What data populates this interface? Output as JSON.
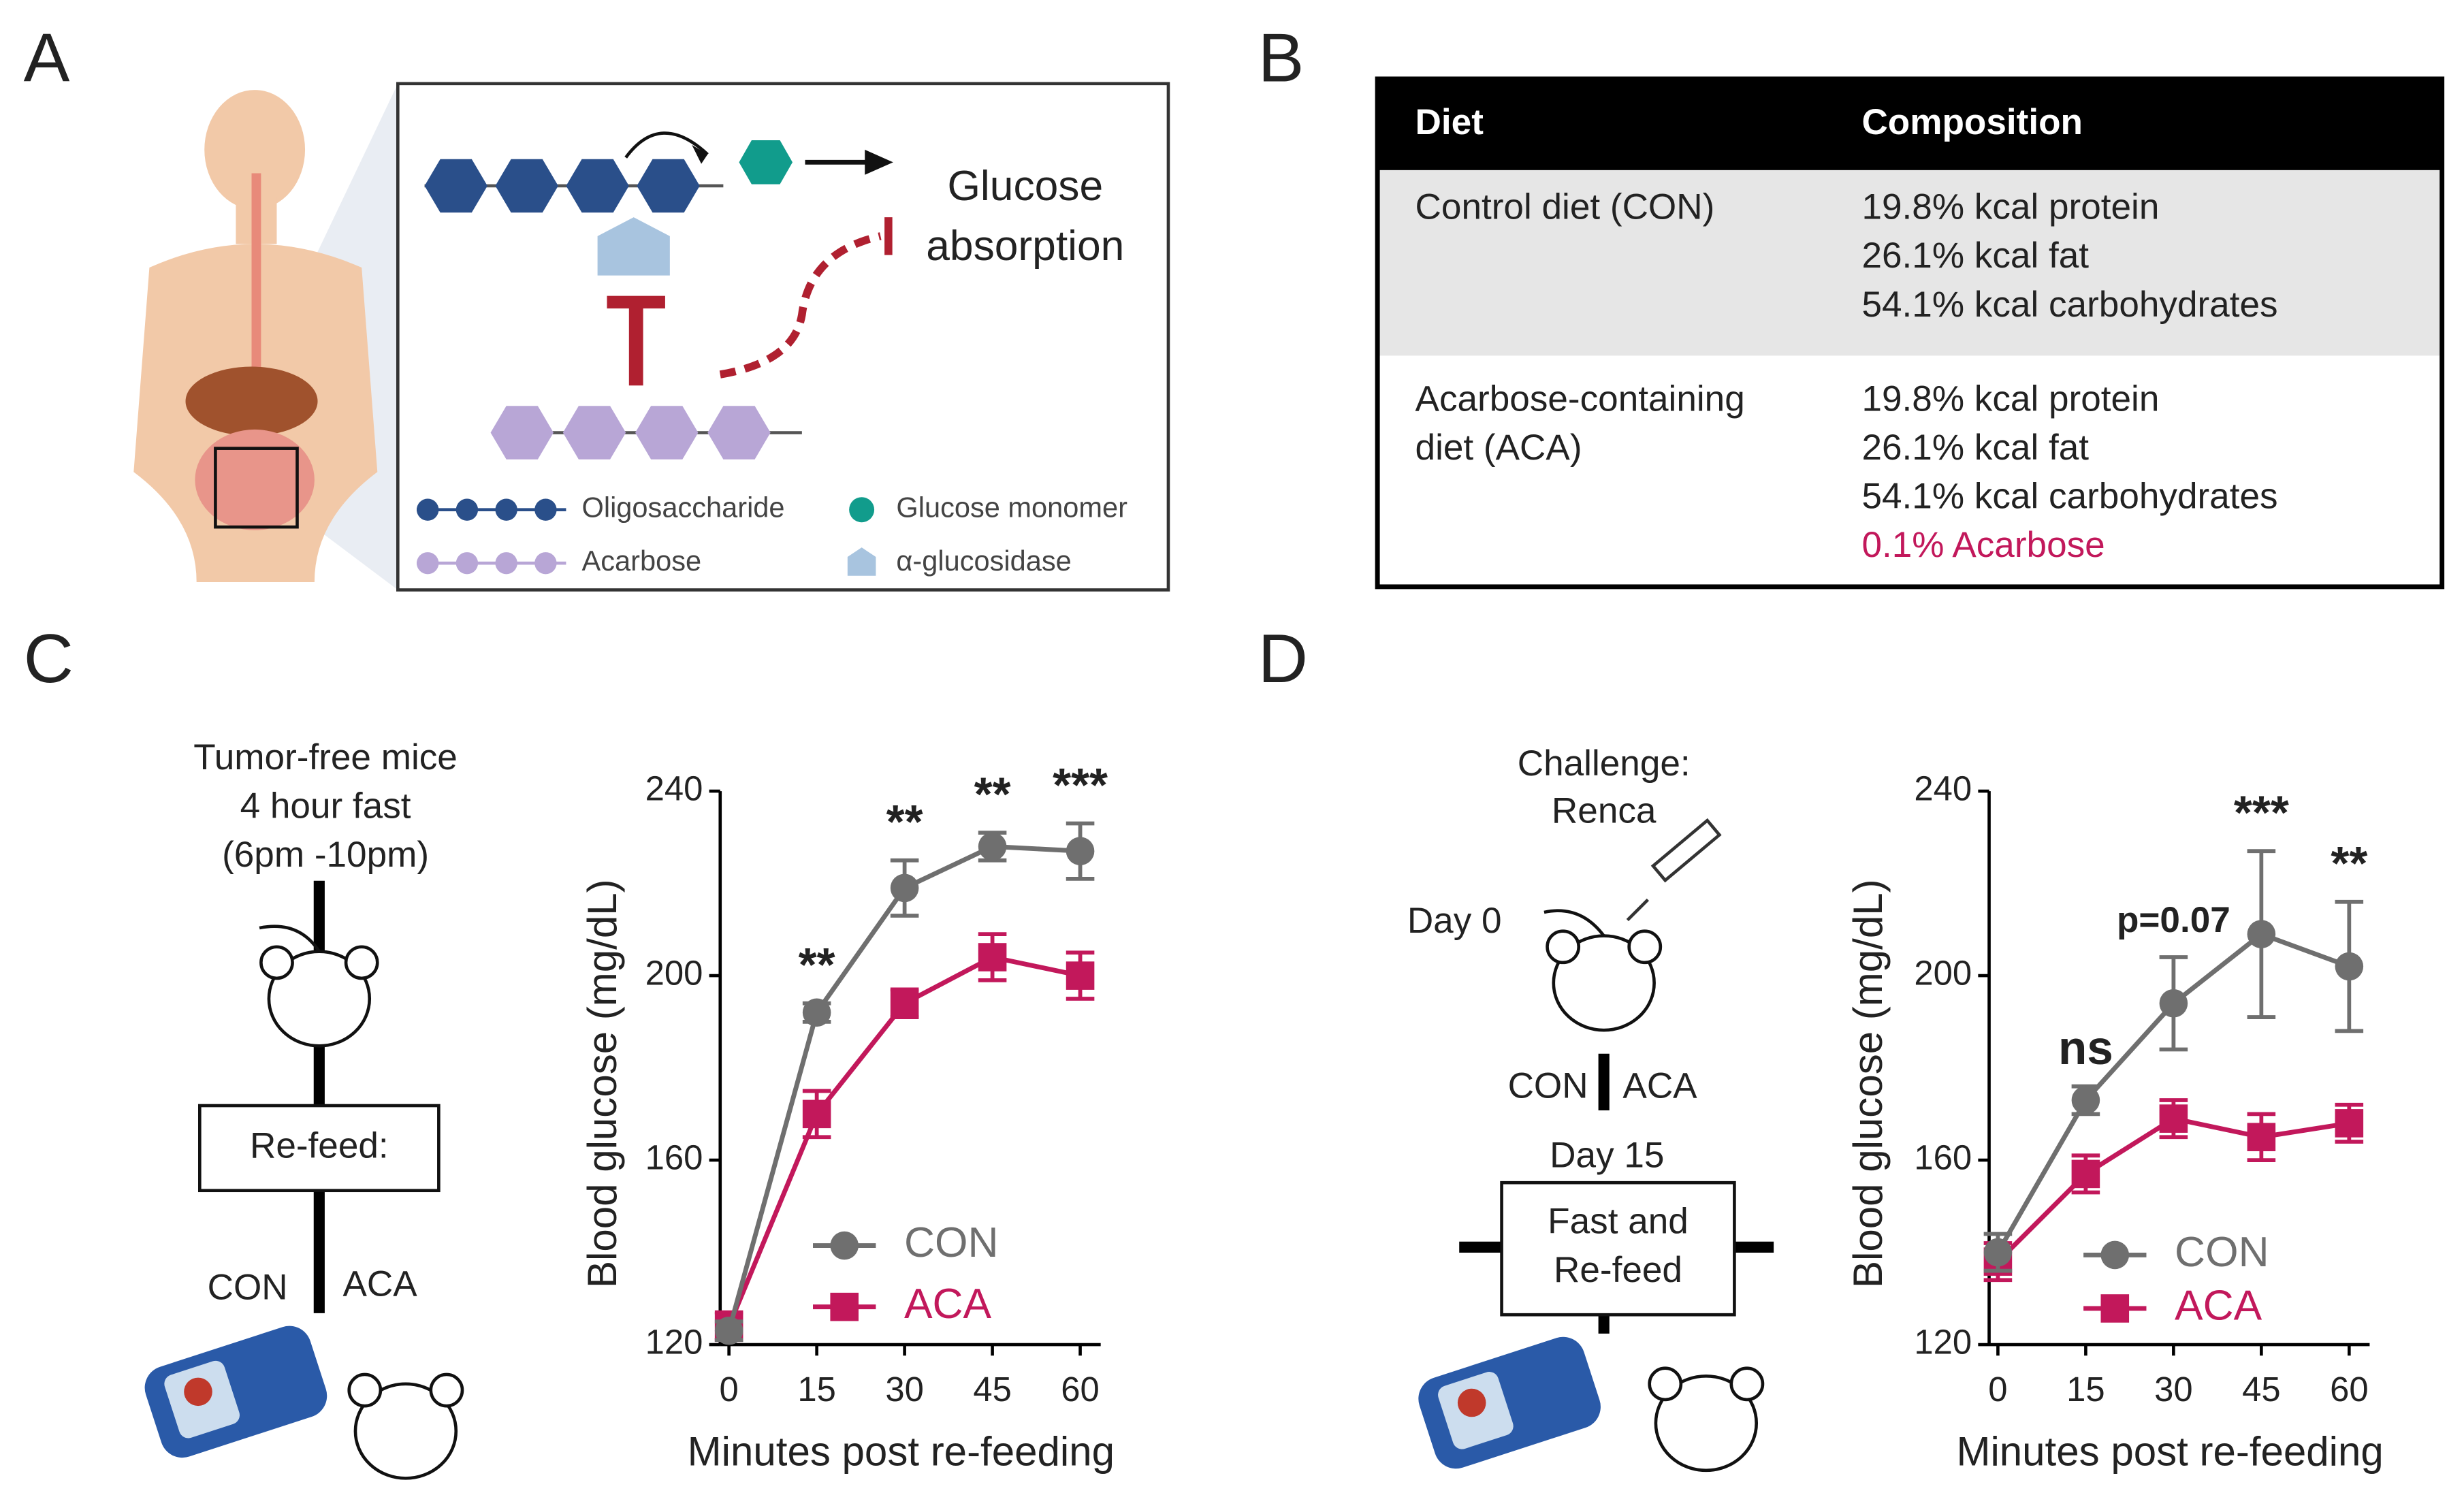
{
  "panel_labels": [
    "A",
    "B",
    "C",
    "D"
  ],
  "panel_a": {
    "glucose_label": [
      "Glucose",
      "absorption"
    ],
    "legend": [
      "Oligosaccharide",
      "Glucose monomer",
      "Acarbose",
      "α-glucosidase"
    ]
  },
  "panel_b": {
    "header": [
      "Diet",
      "Composition"
    ],
    "rows": [
      {
        "diet": [
          "Control  diet (CON)"
        ],
        "composition": [
          "19.8%  kcal protein",
          "26.1%  kcal fat",
          "54.1%  kcal carbohydrates"
        ]
      },
      {
        "diet": [
          "Acarbose-containing",
          "diet (ACA)"
        ],
        "composition": [
          "19.8%  kcal protein",
          "26.1%  kcal fat",
          "54.1%  kcal carbohydrates",
          "0.1% Acarbose"
        ]
      }
    ]
  },
  "panel_c_scheme": {
    "lines": [
      "Tumor-free  mice",
      "4 hour fast",
      "(6pm -10pm)"
    ],
    "box": "Re-feed:",
    "groups": [
      "CON",
      "ACA"
    ]
  },
  "panel_d_scheme": {
    "lines": [
      "Challenge:",
      "Renca"
    ],
    "day0": "Day 0",
    "groups": [
      "CON",
      "ACA"
    ],
    "day15": "Day 15",
    "box": [
      "Fast and",
      "Re-feed"
    ]
  },
  "chart_data": [
    {
      "type": "line",
      "x": [
        0,
        15,
        30,
        45,
        60
      ],
      "xlim": [
        -1.5,
        63.5
      ],
      "xticks": [
        0,
        15,
        30,
        45,
        60
      ],
      "ylim": [
        120,
        240
      ],
      "yticks": [
        120,
        160,
        200,
        240
      ],
      "ylabel": "Blood glucose (mg/dL)",
      "xlabel": "Minutes post re-feeding",
      "series": [
        {
          "name": "CON",
          "color": "#6f6f6f",
          "marker": "circle",
          "values": [
            123,
            192,
            219,
            228,
            227
          ],
          "errors": [
            2,
            2,
            6,
            3,
            6
          ]
        },
        {
          "name": "ACA",
          "color": "#c2185b",
          "marker": "square",
          "values": [
            124,
            170,
            194,
            204,
            200
          ],
          "errors": [
            3,
            5,
            3,
            5,
            5
          ]
        }
      ],
      "annotations": [
        {
          "x": 15,
          "text": "**"
        },
        {
          "x": 30,
          "text": "**"
        },
        {
          "x": 45,
          "text": "**"
        },
        {
          "x": 60,
          "text": "***"
        }
      ]
    },
    {
      "type": "line",
      "x": [
        0,
        15,
        30,
        45,
        60
      ],
      "xlim": [
        -1.5,
        63.5
      ],
      "xticks": [
        0,
        15,
        30,
        45,
        60
      ],
      "ylim": [
        120,
        240
      ],
      "yticks": [
        120,
        160,
        200,
        240
      ],
      "ylabel": "Blood glucose (mg/dL)",
      "xlabel": "Minutes post re-feeding",
      "series": [
        {
          "name": "CON",
          "color": "#6f6f6f",
          "marker": "circle",
          "values": [
            140,
            173,
            194,
            209,
            202
          ],
          "errors": [
            4,
            3,
            10,
            18,
            14
          ]
        },
        {
          "name": "ACA",
          "color": "#c2185b",
          "marker": "square",
          "values": [
            138,
            157,
            169,
            165,
            168
          ],
          "errors": [
            4,
            4,
            4,
            5,
            4
          ]
        }
      ],
      "annotations": [
        {
          "x": 15,
          "text": "ns"
        },
        {
          "x": 30,
          "text": "p=0.07"
        },
        {
          "x": 45,
          "text": "***"
        },
        {
          "x": 60,
          "text": "**"
        }
      ]
    }
  ]
}
